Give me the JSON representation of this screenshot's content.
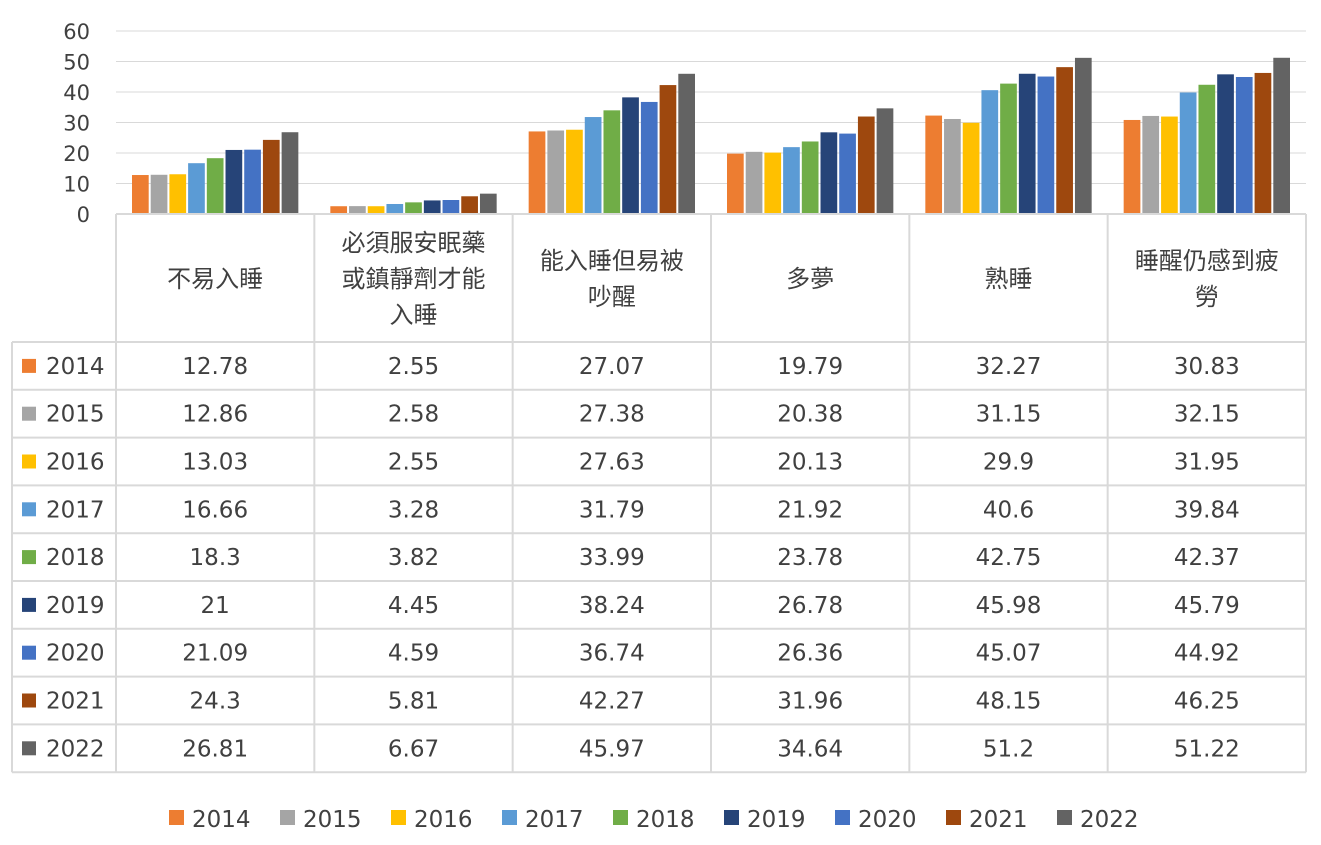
{
  "chart_data": {
    "type": "bar",
    "ylim": [
      0,
      60
    ],
    "yticks": [
      0,
      10,
      20,
      30,
      40,
      50,
      60
    ],
    "grid": true,
    "legend_position": "bottom",
    "has_data_table": true,
    "categories": [
      [
        "不易入睡"
      ],
      [
        "必須服安眠藥",
        "或鎮靜劑才能",
        "入睡"
      ],
      [
        "能入睡但易被",
        "吵醒"
      ],
      [
        "多夢"
      ],
      [
        "熟睡"
      ],
      [
        "睡醒仍感到疲",
        "勞"
      ]
    ],
    "series": [
      {
        "name": "2014",
        "color": "#ED7D31",
        "values": [
          12.78,
          2.55,
          27.07,
          19.79,
          32.27,
          30.83
        ],
        "labels": [
          "12.78",
          "2.55",
          "27.07",
          "19.79",
          "32.27",
          "30.83"
        ]
      },
      {
        "name": "2015",
        "color": "#A5A5A5",
        "values": [
          12.86,
          2.58,
          27.38,
          20.38,
          31.15,
          32.15
        ],
        "labels": [
          "12.86",
          "2.58",
          "27.38",
          "20.38",
          "31.15",
          "32.15"
        ]
      },
      {
        "name": "2016",
        "color": "#FFC000",
        "values": [
          13.03,
          2.55,
          27.63,
          20.13,
          29.9,
          31.95
        ],
        "labels": [
          "13.03",
          "2.55",
          "27.63",
          "20.13",
          "29.9",
          "31.95"
        ]
      },
      {
        "name": "2017",
        "color": "#5B9BD5",
        "values": [
          16.66,
          3.28,
          31.79,
          21.92,
          40.6,
          39.84
        ],
        "labels": [
          "16.66",
          "3.28",
          "31.79",
          "21.92",
          "40.6",
          "39.84"
        ]
      },
      {
        "name": "2018",
        "color": "#70AD47",
        "values": [
          18.3,
          3.82,
          33.99,
          23.78,
          42.75,
          42.37
        ],
        "labels": [
          "18.3",
          "3.82",
          "33.99",
          "23.78",
          "42.75",
          "42.37"
        ]
      },
      {
        "name": "2019",
        "color": "#264478",
        "values": [
          21,
          4.45,
          38.24,
          26.78,
          45.98,
          45.79
        ],
        "labels": [
          "21",
          "4.45",
          "38.24",
          "26.78",
          "45.98",
          "45.79"
        ]
      },
      {
        "name": "2020",
        "color": "#4472C4",
        "values": [
          21.09,
          4.59,
          36.74,
          26.36,
          45.07,
          44.92
        ],
        "labels": [
          "21.09",
          "4.59",
          "36.74",
          "26.36",
          "45.07",
          "44.92"
        ]
      },
      {
        "name": "2021",
        "color": "#9E480E",
        "values": [
          24.3,
          5.81,
          42.27,
          31.96,
          48.15,
          46.25
        ],
        "labels": [
          "24.3",
          "5.81",
          "42.27",
          "31.96",
          "48.15",
          "46.25"
        ]
      },
      {
        "name": "2022",
        "color": "#636363",
        "values": [
          26.81,
          6.67,
          45.97,
          34.64,
          51.2,
          51.22
        ],
        "labels": [
          "26.81",
          "6.67",
          "45.97",
          "34.64",
          "51.2",
          "51.22"
        ]
      }
    ]
  }
}
